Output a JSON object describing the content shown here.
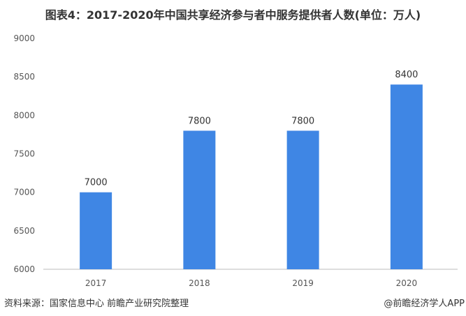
{
  "chart_data": {
    "type": "bar",
    "title": "图表4：2017-2020年中国共享经济参与者中服务提供者人数(单位：万人)",
    "categories": [
      "2017",
      "2018",
      "2019",
      "2020"
    ],
    "values": [
      7000,
      7800,
      7800,
      8400
    ],
    "data_labels": [
      "7000",
      "7800",
      "7800",
      "8400"
    ],
    "xlabel": "",
    "ylabel": "",
    "ylim": [
      6000,
      9000
    ],
    "yticks": [
      6000,
      6500,
      7000,
      7500,
      8000,
      8500,
      9000
    ],
    "grid": false,
    "bar_color": "#3f86e4"
  },
  "footer": {
    "source": "资料来源：国家信息中心 前瞻产业研究院整理",
    "credit": "@前瞻经济学人APP"
  }
}
